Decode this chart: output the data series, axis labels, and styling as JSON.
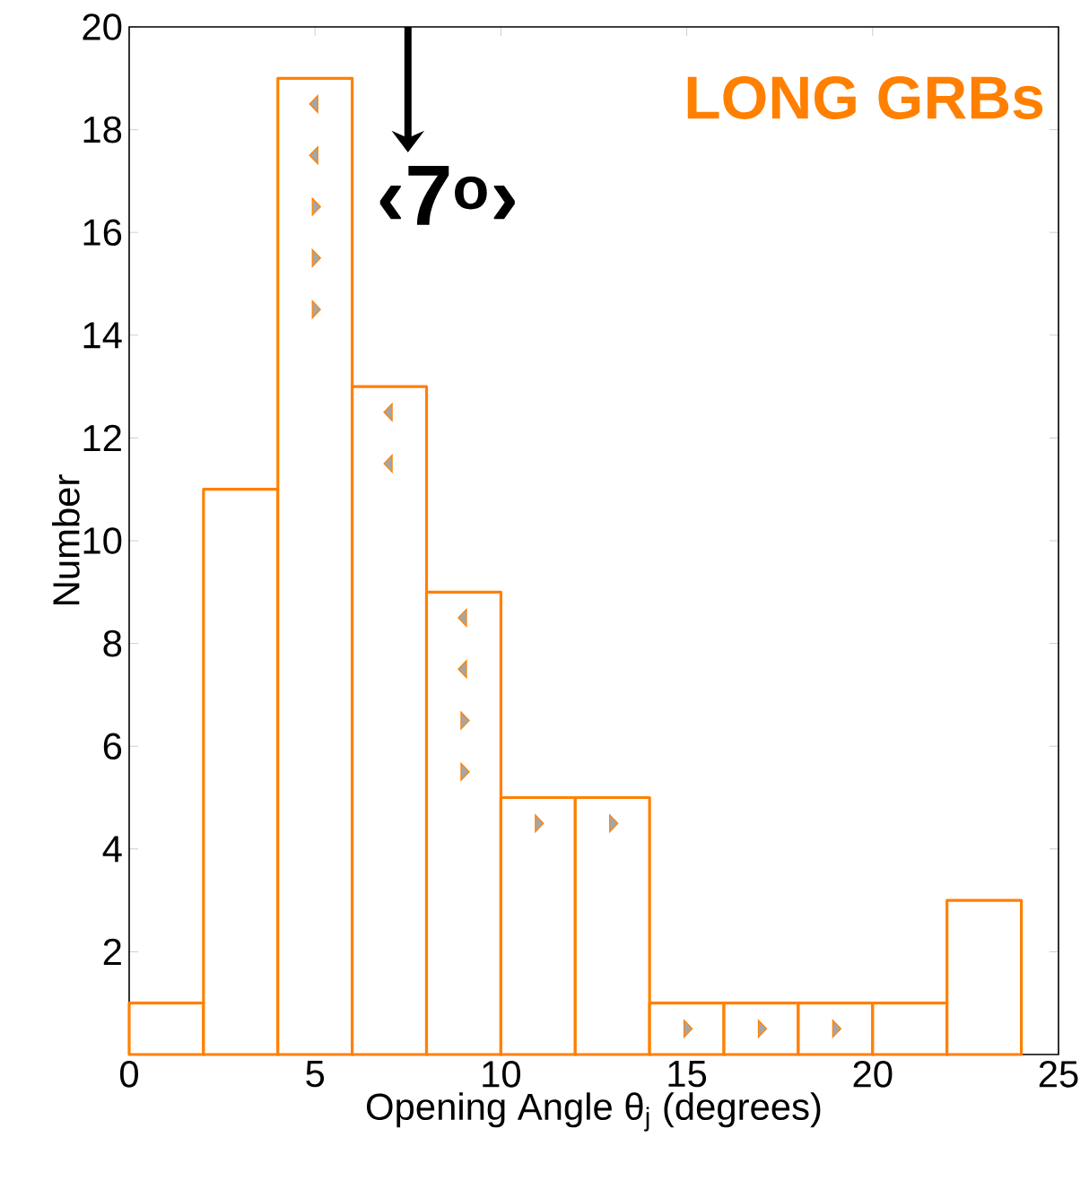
{
  "chart_data": {
    "type": "histogram",
    "bins": [
      0,
      2,
      4,
      6,
      8,
      10,
      12,
      14,
      16,
      18,
      20,
      22,
      24
    ],
    "values": [
      1,
      11,
      19,
      13,
      9,
      5,
      5,
      1,
      1,
      1,
      1,
      3
    ],
    "color": "#ff8000",
    "series": [
      {
        "type": "scatter",
        "color": "#a6a6a6",
        "marker": "triangle",
        "x": [
          5,
          5,
          7,
          7,
          9,
          9
        ],
        "values": [
          18.5,
          17.5,
          12.5,
          11.5,
          8.5,
          7.5
        ]
      },
      {
        "type": "scatter",
        "color": "#a6a6a6",
        "marker": "triangle",
        "x": [
          5,
          5,
          5,
          9,
          9,
          11,
          13,
          15,
          17,
          19
        ],
        "values": [
          16.5,
          15.5,
          14.5,
          6.5,
          5.5,
          4.5,
          4.5,
          0.5,
          0.5,
          0.5
        ]
      }
    ],
    "xlabel": "Opening Angle θ$_{j}$ (degrees)",
    "ylabel": "Number",
    "xlim": [
      0,
      25
    ],
    "xticks": [
      0,
      5,
      10,
      15,
      20,
      25
    ],
    "ylim": [
      0,
      20
    ],
    "yticks": [
      2,
      4,
      6,
      8,
      10,
      12,
      14,
      16,
      18,
      20
    ],
    "ref_lines": [
      {
        "axis": "x",
        "value": 7.5,
        "label": "‹7$^{o}$›",
        "color": "#000000"
      }
    ],
    "annotations": [
      "LONG GRBs"
    ]
  }
}
